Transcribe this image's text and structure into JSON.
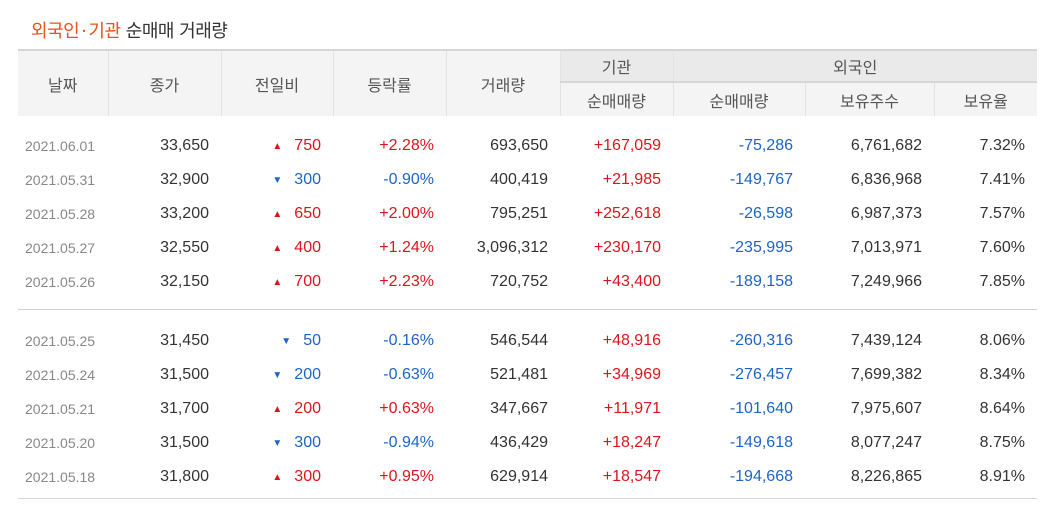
{
  "title": {
    "part1": "외국인",
    "dot": "·",
    "part2": "기관",
    "part3": "순매매 거래량"
  },
  "headers": {
    "date": "날짜",
    "close": "종가",
    "change": "전일비",
    "rate": "등락률",
    "volume": "거래량",
    "inst_group": "기관",
    "inst_net": "순매매량",
    "foreign_group": "외국인",
    "foreign_net": "순매매량",
    "foreign_shares": "보유주수",
    "foreign_ratio": "보유율"
  },
  "colors": {
    "accent": "#e8501c",
    "up": "#d9161c",
    "down": "#1c64c8"
  },
  "rows": [
    {
      "date": "2021.06.01",
      "close": "33,650",
      "dir": "up",
      "arrow": "▲",
      "change": "750",
      "rate": "+2.28%",
      "volume": "693,650",
      "inst": "+167,059",
      "foreign": "-75,286",
      "shares": "6,761,682",
      "ratio": "7.32%"
    },
    {
      "date": "2021.05.31",
      "close": "32,900",
      "dir": "down",
      "arrow": "▼",
      "change": "300",
      "rate": "-0.90%",
      "volume": "400,419",
      "inst": "+21,985",
      "foreign": "-149,767",
      "shares": "6,836,968",
      "ratio": "7.41%"
    },
    {
      "date": "2021.05.28",
      "close": "33,200",
      "dir": "up",
      "arrow": "▲",
      "change": "650",
      "rate": "+2.00%",
      "volume": "795,251",
      "inst": "+252,618",
      "foreign": "-26,598",
      "shares": "6,987,373",
      "ratio": "7.57%"
    },
    {
      "date": "2021.05.27",
      "close": "32,550",
      "dir": "up",
      "arrow": "▲",
      "change": "400",
      "rate": "+1.24%",
      "volume": "3,096,312",
      "inst": "+230,170",
      "foreign": "-235,995",
      "shares": "7,013,971",
      "ratio": "7.60%"
    },
    {
      "date": "2021.05.26",
      "close": "32,150",
      "dir": "up",
      "arrow": "▲",
      "change": "700",
      "rate": "+2.23%",
      "volume": "720,752",
      "inst": "+43,400",
      "foreign": "-189,158",
      "shares": "7,249,966",
      "ratio": "7.85%"
    },
    {
      "date": "2021.05.25",
      "close": "31,450",
      "dir": "down",
      "arrow": "▼",
      "change": "50",
      "rate": "-0.16%",
      "volume": "546,544",
      "inst": "+48,916",
      "foreign": "-260,316",
      "shares": "7,439,124",
      "ratio": "8.06%"
    },
    {
      "date": "2021.05.24",
      "close": "31,500",
      "dir": "down",
      "arrow": "▼",
      "change": "200",
      "rate": "-0.63%",
      "volume": "521,481",
      "inst": "+34,969",
      "foreign": "-276,457",
      "shares": "7,699,382",
      "ratio": "8.34%"
    },
    {
      "date": "2021.05.21",
      "close": "31,700",
      "dir": "up",
      "arrow": "▲",
      "change": "200",
      "rate": "+0.63%",
      "volume": "347,667",
      "inst": "+11,971",
      "foreign": "-101,640",
      "shares": "7,975,607",
      "ratio": "8.64%"
    },
    {
      "date": "2021.05.20",
      "close": "31,500",
      "dir": "down",
      "arrow": "▼",
      "change": "300",
      "rate": "-0.94%",
      "volume": "436,429",
      "inst": "+18,247",
      "foreign": "-149,618",
      "shares": "8,077,247",
      "ratio": "8.75%"
    },
    {
      "date": "2021.05.18",
      "close": "31,800",
      "dir": "up",
      "arrow": "▲",
      "change": "300",
      "rate": "+0.95%",
      "volume": "629,914",
      "inst": "+18,547",
      "foreign": "-194,668",
      "shares": "8,226,865",
      "ratio": "8.91%"
    }
  ]
}
